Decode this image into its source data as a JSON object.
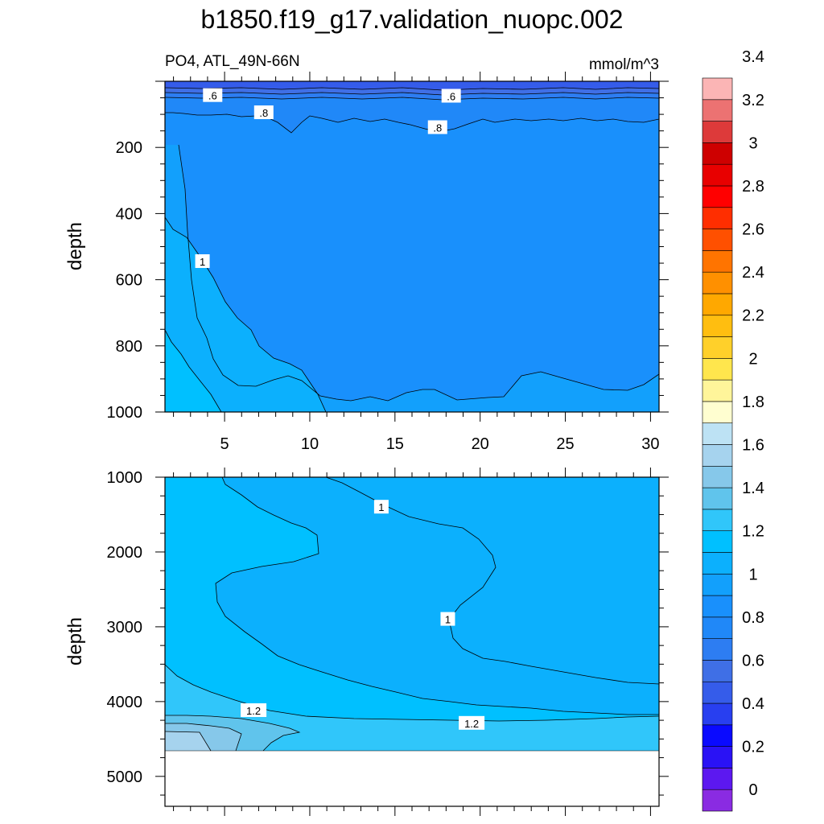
{
  "title": "b1850.f19_g17.validation_nuopc.002",
  "chart_data": [
    {
      "type": "contour",
      "panel": "upper",
      "left_string": "PO4, ATL_49N-66N",
      "right_string": "mmol/m^3",
      "ylabel": "depth",
      "y_reversed": true,
      "xlim": [
        1.5,
        30.5
      ],
      "ylim": [
        1000,
        0
      ],
      "x_ticks": [
        5,
        10,
        15,
        20,
        25,
        30
      ],
      "y_ticks": [
        200,
        400,
        600,
        800,
        1000
      ],
      "contour_labels": [
        {
          "text": ".6",
          "x": 4.3,
          "y": 43
        },
        {
          "text": ".6",
          "x": 18.3,
          "y": 45
        },
        {
          "text": ".8",
          "x": 7.3,
          "y": 95
        },
        {
          "text": ".8",
          "x": 17.5,
          "y": 140
        },
        {
          "text": "1",
          "x": 3.7,
          "y": 545
        }
      ]
    },
    {
      "type": "contour",
      "panel": "lower",
      "ylabel": "depth",
      "y_reversed": true,
      "xlim": [
        1.5,
        30.5
      ],
      "ylim": [
        5400,
        1000
      ],
      "y_ticks": [
        1000,
        2000,
        3000,
        4000,
        5000
      ],
      "contour_labels": [
        {
          "text": "1",
          "x": 14.2,
          "y": 1400
        },
        {
          "text": "1",
          "x": 18.1,
          "y": 2900
        },
        {
          "text": "1.2",
          "x": 6.7,
          "y": 4120
        },
        {
          "text": "1.2",
          "x": 19.5,
          "y": 4290
        }
      ]
    }
  ],
  "colorbar": {
    "labels": [
      "0",
      "0.2",
      "0.4",
      "0.6",
      "0.8",
      "1",
      "1.2",
      "1.4",
      "1.6",
      "1.8",
      "2",
      "2.2",
      "2.4",
      "2.6",
      "2.8",
      "3",
      "3.2",
      "3.4"
    ],
    "colors": [
      "#8a2be2",
      "#5c18f0",
      "#2a12f5",
      "#0a0aff",
      "#283ff0",
      "#355cea",
      "#3f6fe6",
      "#2d7df2",
      "#2088f8",
      "#1990fc",
      "#12a0fc",
      "#0cb0fd",
      "#00c0ff",
      "#30c6fa",
      "#60c4ec",
      "#86c8ea",
      "#a6d3ee",
      "#bde2f4",
      "#fffed0",
      "#fff59a",
      "#ffe64d",
      "#ffd02a",
      "#ffbe10",
      "#ffa800",
      "#ff9000",
      "#ff7400",
      "#ff5000",
      "#ff2e00",
      "#ff0000",
      "#e80000",
      "#ce0000",
      "#dd3a3a",
      "#ec7272",
      "#fbb5b5"
    ]
  }
}
